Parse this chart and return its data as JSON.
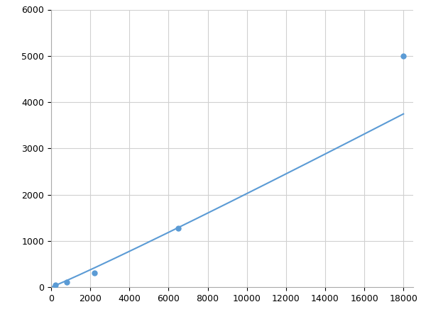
{
  "x_data": [
    200,
    800,
    2200,
    6500,
    18000
  ],
  "y_data": [
    50,
    100,
    300,
    1275,
    5000
  ],
  "line_color": "#5b9bd5",
  "marker_color": "#5b9bd5",
  "marker_size": 5,
  "line_width": 1.5,
  "xlim": [
    0,
    18500
  ],
  "ylim": [
    0,
    6000
  ],
  "xticks": [
    0,
    2000,
    4000,
    6000,
    8000,
    10000,
    12000,
    14000,
    16000,
    18000
  ],
  "yticks": [
    0,
    1000,
    2000,
    3000,
    4000,
    5000,
    6000
  ],
  "grid_color": "#d0d0d0",
  "bg_color": "#ffffff",
  "figsize": [
    6.0,
    4.5
  ],
  "dpi": 100
}
